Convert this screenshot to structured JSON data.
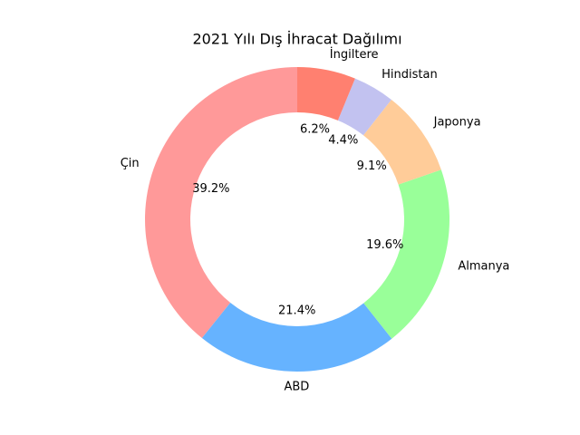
{
  "chart_data": {
    "type": "donut",
    "title": "2021 Yılı Dış İhracat Dağılımı",
    "categories": [
      "Çin",
      "ABD",
      "Almanya",
      "Japonya",
      "Hindistan",
      "İngiltere"
    ],
    "values": [
      39.2,
      21.4,
      19.6,
      9.1,
      4.4,
      6.2
    ],
    "value_labels": [
      "39.2%",
      "21.4%",
      "19.6%",
      "9.1%",
      "4.4%",
      "6.2%"
    ],
    "colors": [
      "#ff9999",
      "#66b3ff",
      "#99ff99",
      "#ffcc99",
      "#c2c2f0",
      "#ff8070"
    ]
  }
}
